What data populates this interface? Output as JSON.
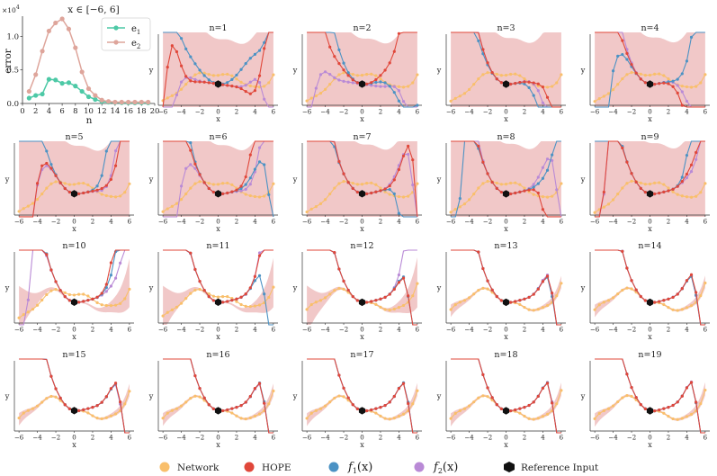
{
  "chart_data": [
    {
      "type": "line",
      "title": "x ∈ [−6, 6]",
      "xlabel": "n",
      "ylabel": "error",
      "scale_label": "×10",
      "scale_exp": "4",
      "xlim": [
        0,
        20
      ],
      "ylim": [
        0,
        1.3
      ],
      "xticks": [
        "0",
        "2",
        "4",
        "6",
        "8",
        "10",
        "12",
        "14",
        "16",
        "18",
        "20"
      ],
      "yticks": [
        "0.0",
        "0.5",
        "1.0"
      ],
      "ytick_values": [
        0,
        0.5,
        1.0
      ],
      "x": [
        1,
        2,
        3,
        4,
        5,
        6,
        7,
        8,
        9,
        10,
        11,
        12,
        13,
        14,
        15,
        16,
        17,
        18,
        19
      ],
      "legend": [
        "e",
        "e"
      ],
      "legend_sub": [
        "1",
        "2"
      ],
      "series": [
        {
          "name": "e1",
          "color": "#4dc9a6",
          "values": [
            0.08,
            0.12,
            0.14,
            0.36,
            0.35,
            0.3,
            0.31,
            0.26,
            0.18,
            0.1,
            0.06,
            0.03,
            0.02,
            0.015,
            0.012,
            0.01,
            0.01,
            0.01,
            0.01
          ]
        },
        {
          "name": "e2",
          "color": "#dea59b",
          "values": [
            0.18,
            0.43,
            0.78,
            1.08,
            1.2,
            1.26,
            1.11,
            0.83,
            0.47,
            0.22,
            0.12,
            0.05,
            0.03,
            0.02,
            0.02,
            0.02,
            0.02,
            0.02,
            0.02
          ]
        }
      ]
    },
    {
      "type": "line",
      "description": "grid of 19 subplots comparing Network, HOPE, f1(x), f2(x) around the reference input for expansion order n",
      "panels": [
        "n=1",
        "n=2",
        "n=3",
        "n=4",
        "n=5",
        "n=6",
        "n=7",
        "n=8",
        "n=9",
        "n=10",
        "n=11",
        "n=12",
        "n=13",
        "n=14",
        "n=15",
        "n=16",
        "n=17",
        "n=18",
        "n=19"
      ],
      "xlabel": "x",
      "ylabel": "y",
      "xlim": [
        -6.5,
        6.5
      ],
      "xticks": [
        "−6",
        "−4",
        "−2",
        "0",
        "2",
        "4",
        "6"
      ],
      "xtick_values": [
        -6,
        -4,
        -2,
        0,
        2,
        4,
        6
      ],
      "reference_x": 0,
      "series_names": [
        "Network",
        "HOPE",
        "f1(x)",
        "f2(x)"
      ],
      "colors": {
        "network": "#f9bf6b",
        "hope": "#e0473a",
        "f1": "#4b92c4",
        "f2": "#b98ad6",
        "reference": "#111111",
        "band": "#e59a9a"
      }
    }
  ],
  "legend": {
    "network": "Network",
    "hope": "HOPE",
    "f1_main": "f",
    "f1_sub": "1",
    "f1_tail": "(x)",
    "f2_main": "f",
    "f2_sub": "2",
    "f2_tail": "(x)",
    "reference": "Reference Input"
  }
}
